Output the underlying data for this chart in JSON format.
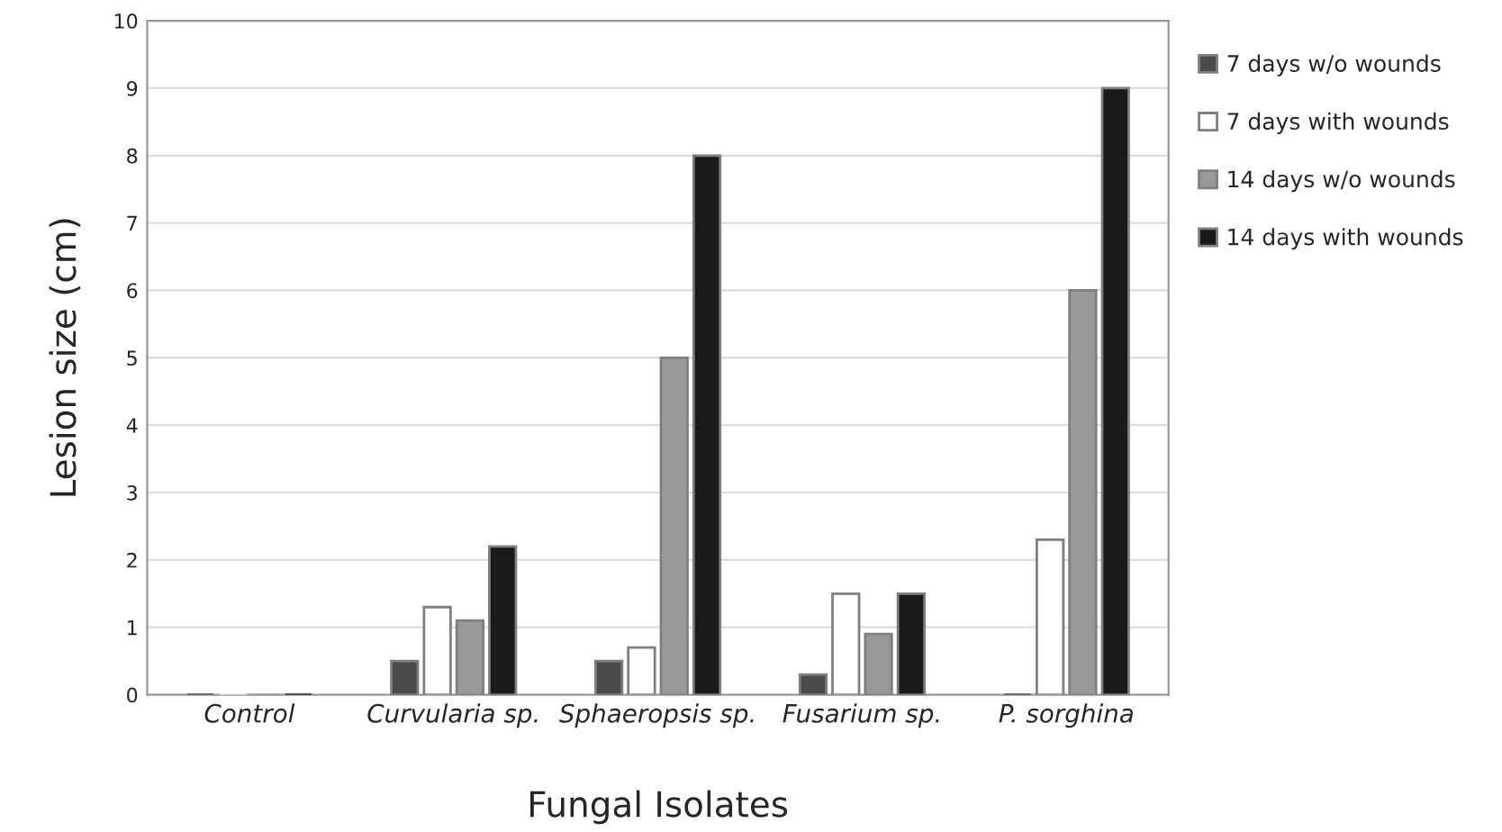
{
  "chart_data": {
    "type": "bar",
    "xlabel": "Fungal Isolates",
    "ylabel": "Lesion size (cm)",
    "categories": [
      "Control",
      "Curvularia sp.",
      "Sphaeropsis sp.",
      "Fusarium sp.",
      "P. sorghina"
    ],
    "series": [
      {
        "name": "7 days w/o wounds",
        "color": "#4a4a4a",
        "values": [
          0,
          0.5,
          0.5,
          0.3,
          0
        ]
      },
      {
        "name": "7 days with wounds",
        "color": "#ffffff",
        "values": [
          0,
          1.3,
          0.7,
          1.5,
          2.3
        ]
      },
      {
        "name": "14 days w/o wounds",
        "color": "#999999",
        "values": [
          0,
          1.1,
          5,
          0.9,
          6
        ]
      },
      {
        "name": "14 days with wounds",
        "color": "#1a1a1a",
        "values": [
          0,
          2.2,
          8,
          1.5,
          9
        ]
      }
    ],
    "ylim": [
      0,
      10
    ],
    "yticks": [
      0,
      1,
      2,
      3,
      4,
      5,
      6,
      7,
      8,
      9,
      10
    ],
    "grid": "y",
    "legend": "right"
  }
}
